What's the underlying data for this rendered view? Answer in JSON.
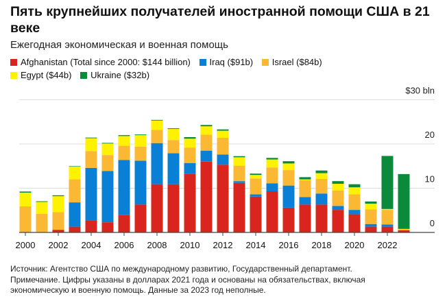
{
  "chart_data": {
    "type": "bar",
    "stacked": true,
    "title": "Пять крупнейших получателей иностранной помощи США в 21 веке",
    "subtitle": "Ежегодная экономическая и военная помощь",
    "categories": [
      2000,
      2001,
      2002,
      2003,
      2004,
      2005,
      2006,
      2007,
      2008,
      2009,
      2010,
      2011,
      2012,
      2013,
      2014,
      2015,
      2016,
      2017,
      2018,
      2019,
      2020,
      2021,
      2022,
      2023
    ],
    "x_tick_labels": [
      "2000",
      "2002",
      "2004",
      "2006",
      "2008",
      "2010",
      "2012",
      "2014",
      "2016",
      "2018",
      "2020",
      "2022"
    ],
    "y_tick_labels": [
      "0",
      "10",
      "20",
      "$30 bln"
    ],
    "ylim": [
      0,
      30
    ],
    "grid": true,
    "legend_placement": "top-left",
    "series": [
      {
        "name": "Afghanistan (Total since 2000: $144 billion)",
        "color": "#d9251d",
        "values": [
          0,
          0,
          0.6,
          1.3,
          2.7,
          2.3,
          3.9,
          6.3,
          10.9,
          10.9,
          13.2,
          16.0,
          15.3,
          11.2,
          8.1,
          9.3,
          5.6,
          6.3,
          6.3,
          5.1,
          4.1,
          1.3,
          1.3,
          0.5
        ]
      },
      {
        "name": "Iraq ($91b)",
        "color": "#0a7fd6",
        "values": [
          0,
          0,
          0,
          5.5,
          11.9,
          11.6,
          12.5,
          9.9,
          9.3,
          7.0,
          2.5,
          2.5,
          2.3,
          0.4,
          0.5,
          1.8,
          5.0,
          1.7,
          2.5,
          0.9,
          1.0,
          0.6,
          0.5,
          0
        ]
      },
      {
        "name": "Israel ($84b)",
        "color": "#fbb933",
        "values": [
          5.9,
          4.2,
          4.0,
          5.2,
          3.8,
          3.6,
          3.2,
          3.2,
          3.0,
          3.0,
          3.5,
          3.6,
          3.8,
          3.5,
          3.6,
          3.6,
          3.5,
          3.8,
          3.3,
          3.5,
          3.5,
          3.3,
          3.3,
          0.2
        ]
      },
      {
        "name": "Egypt ($44b)",
        "color": "#fff200",
        "values": [
          3.1,
          2.7,
          3.6,
          2.9,
          2.9,
          2.6,
          2.2,
          2.6,
          2.1,
          2.5,
          2.0,
          1.9,
          1.6,
          1.9,
          0.8,
          1.8,
          1.5,
          0.2,
          1.3,
          1.5,
          1.6,
          1.3,
          0.2,
          0.1
        ]
      },
      {
        "name": "Ukraine ($32b)",
        "color": "#0b8a3c",
        "values": [
          0.25,
          0.15,
          0.2,
          0.1,
          0.15,
          0.15,
          0.2,
          0.15,
          0.15,
          0.15,
          0.35,
          0.3,
          0.3,
          0.25,
          0.3,
          0.35,
          0.5,
          0.5,
          0.6,
          0.6,
          0.7,
          0.5,
          12.0,
          12.4
        ]
      }
    ],
    "footer": [
      "Источник: Агентство США по международному развитию, Государственный департамент.",
      "Примечание. Цифры указаны в долларах 2021 года и основаны на обязательствах, включая",
      "экономическую и военную помощь. Данные за 2023 год неполные."
    ]
  }
}
